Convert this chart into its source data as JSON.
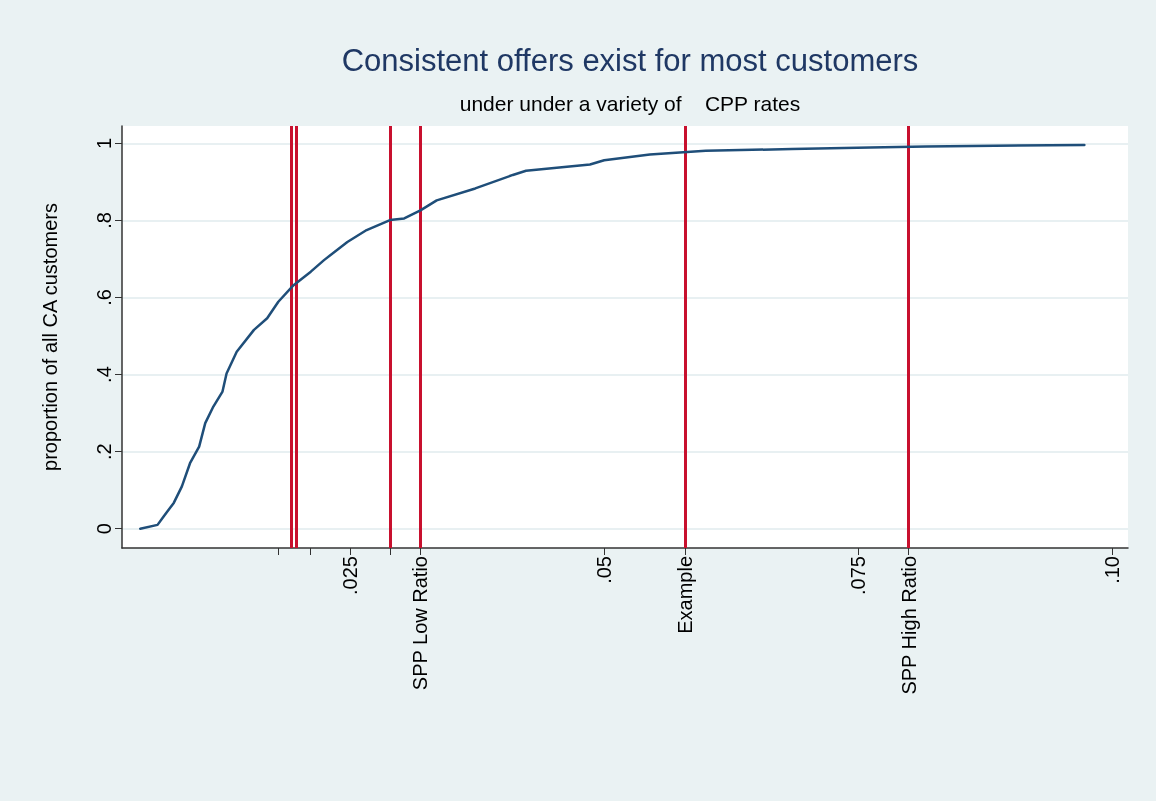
{
  "chart_data": {
    "type": "line",
    "title": "Consistent offers exist for most customers",
    "subtitle": "under under a variety of    CPP rates",
    "ylabel": "proportion of all CA customers",
    "series": [
      {
        "color": "#1f4e79",
        "x": [
          0.0043,
          0.006,
          0.0066,
          0.0076,
          0.0084,
          0.0092,
          0.0101,
          0.0107,
          0.0115,
          0.0124,
          0.0128,
          0.0138,
          0.0155,
          0.0168,
          0.0179,
          0.0194,
          0.0211,
          0.0224,
          0.0247,
          0.0266,
          0.0289,
          0.0303,
          0.0319,
          0.0335,
          0.0373,
          0.041,
          0.0423,
          0.0486,
          0.05,
          0.0545,
          0.06,
          0.0685,
          0.0762,
          0.0817,
          0.0973
        ],
        "values": [
          0,
          0.01,
          0.032,
          0.067,
          0.11,
          0.17,
          0.213,
          0.274,
          0.317,
          0.356,
          0.403,
          0.459,
          0.516,
          0.546,
          0.589,
          0.632,
          0.667,
          0.697,
          0.744,
          0.775,
          0.801,
          0.805,
          0.826,
          0.852,
          0.883,
          0.918,
          0.929,
          0.945,
          0.956,
          0.971,
          0.981,
          0.985,
          0.989,
          0.992,
          0.996
        ]
      }
    ],
    "xlim": [
      0.0025,
      0.1016
    ],
    "ylim": [
      -0.05,
      1.045
    ],
    "xticks": [
      {
        "value": 0.0179,
        "label": null
      },
      {
        "value": 0.021,
        "label": null
      },
      {
        "value": 0.025,
        "label": ".025"
      },
      {
        "value": 0.0289,
        "label": null
      },
      {
        "value": 0.0319,
        "label": "SPP Low Ratio"
      },
      {
        "value": 0.05,
        "label": ".05"
      },
      {
        "value": 0.058,
        "label": "Example"
      },
      {
        "value": 0.075,
        "label": ".075"
      },
      {
        "value": 0.08,
        "label": "SPP High Ratio"
      },
      {
        "value": 0.1,
        "label": ".10"
      }
    ],
    "yticks": [
      0,
      {
        "value": 0.2,
        "label": ".2"
      },
      {
        "value": 0.4,
        "label": ".4"
      },
      {
        "value": 0.6,
        "label": ".6"
      },
      {
        "value": 0.8,
        "label": ".8"
      },
      1
    ],
    "ref_lines": [
      {
        "axis": "x",
        "value": 0.0192,
        "color": "#c8102e"
      },
      {
        "axis": "x",
        "value": 0.0197,
        "color": "#c8102e"
      },
      {
        "axis": "x",
        "value": 0.0289,
        "color": "#c8102e"
      },
      {
        "axis": "x",
        "value": 0.0319,
        "color": "#c8102e"
      },
      {
        "axis": "x",
        "value": 0.058,
        "color": "#c8102e"
      },
      {
        "axis": "x",
        "value": 0.08,
        "color": "#c8102e"
      }
    ],
    "grid": "y",
    "marker": "none",
    "line_style": "solid"
  }
}
